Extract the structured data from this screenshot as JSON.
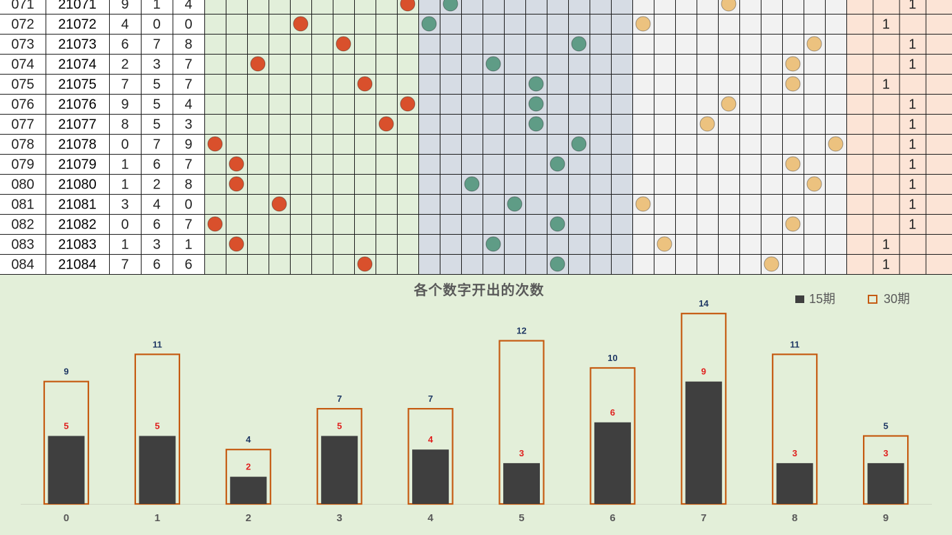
{
  "table": {
    "rows": [
      {
        "seq": "071",
        "issue": "21071",
        "digits": [
          9,
          1,
          4
        ],
        "trend": "1"
      },
      {
        "seq": "072",
        "issue": "21072",
        "digits": [
          4,
          0,
          0
        ],
        "trend": "1"
      },
      {
        "seq": "073",
        "issue": "21073",
        "digits": [
          6,
          7,
          8
        ],
        "trend": "1"
      },
      {
        "seq": "074",
        "issue": "21074",
        "digits": [
          2,
          3,
          7
        ],
        "trend": "1"
      },
      {
        "seq": "075",
        "issue": "21075",
        "digits": [
          7,
          5,
          7
        ],
        "trend": "1"
      },
      {
        "seq": "076",
        "issue": "21076",
        "digits": [
          9,
          5,
          4
        ],
        "trend": "1"
      },
      {
        "seq": "077",
        "issue": "21077",
        "digits": [
          8,
          5,
          3
        ],
        "trend": "1"
      },
      {
        "seq": "078",
        "issue": "21078",
        "digits": [
          0,
          7,
          9
        ],
        "trend": "1"
      },
      {
        "seq": "079",
        "issue": "21079",
        "digits": [
          1,
          6,
          7
        ],
        "trend": "1"
      },
      {
        "seq": "080",
        "issue": "21080",
        "digits": [
          1,
          2,
          8
        ],
        "trend": "1"
      },
      {
        "seq": "081",
        "issue": "21081",
        "digits": [
          3,
          4,
          0
        ],
        "trend": "1"
      },
      {
        "seq": "082",
        "issue": "21082",
        "digits": [
          0,
          6,
          7
        ],
        "trend": "1"
      },
      {
        "seq": "083",
        "issue": "21083",
        "digits": [
          1,
          3,
          1
        ],
        "trend": "1"
      },
      {
        "seq": "084",
        "issue": "21084",
        "digits": [
          7,
          6,
          6
        ],
        "trend": "1"
      }
    ],
    "trend_columns": [
      2,
      1,
      2,
      2,
      1,
      2,
      2,
      2,
      2,
      2,
      2,
      2,
      1,
      1
    ],
    "colors": {
      "red": "#d9502c",
      "green": "#5f9c86",
      "orange": "#ecc27f",
      "zone_green": "#e2efda",
      "zone_blue": "#d6dce4",
      "zone_grey": "#f2f2f2",
      "zone_pink": "#fce4d6"
    }
  },
  "chart_data": {
    "type": "bar",
    "title": "各个数字开出的次数",
    "categories": [
      "0",
      "1",
      "2",
      "3",
      "4",
      "5",
      "6",
      "7",
      "8",
      "9"
    ],
    "series": [
      {
        "name": "15期",
        "values": [
          5,
          5,
          2,
          5,
          4,
          3,
          6,
          9,
          3,
          3
        ],
        "style": "filled",
        "color": "#3f3f3f",
        "label_color": "#e0201e"
      },
      {
        "name": "30期",
        "values": [
          9,
          11,
          4,
          7,
          7,
          12,
          10,
          14,
          11,
          5
        ],
        "style": "outline",
        "color": "#c55a11",
        "label_color": "#1f3864"
      }
    ],
    "ylim": [
      0,
      14
    ],
    "legend": "top-right",
    "grid": false
  }
}
